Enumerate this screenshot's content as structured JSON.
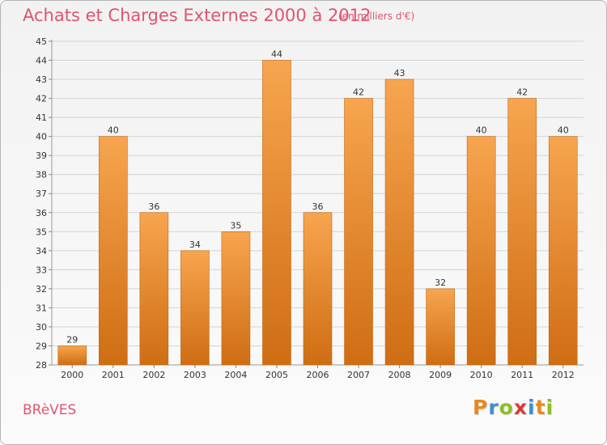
{
  "header": {
    "title": "Achats et Charges Externes 2000 à 2012",
    "subtitle": "(en milliers d'€)"
  },
  "footer": {
    "commune": "BRèVES",
    "brand": {
      "letters": [
        "P",
        "r",
        "o",
        "x",
        "i",
        "t",
        "i"
      ],
      "colors": [
        "#e8891c",
        "#3d8fd1",
        "#8cbf26",
        "#d93a32",
        "#3d8fd1",
        "#e8891c",
        "#8cbf26"
      ]
    }
  },
  "chart_data": {
    "type": "bar",
    "title": "Achats et Charges Externes 2000 à 2012",
    "subtitle": "(en milliers d'€)",
    "xlabel": "",
    "ylabel": "",
    "categories": [
      "2000",
      "2001",
      "2002",
      "2003",
      "2004",
      "2005",
      "2006",
      "2007",
      "2008",
      "2009",
      "2010",
      "2011",
      "2012"
    ],
    "values": [
      29,
      40,
      36,
      34,
      35,
      44,
      36,
      42,
      43,
      32,
      40,
      42,
      40
    ],
    "ylim": [
      28,
      45
    ],
    "yticks": [
      28,
      29,
      30,
      31,
      32,
      33,
      34,
      35,
      36,
      37,
      38,
      39,
      40,
      41,
      42,
      43,
      44,
      45
    ],
    "grid": true,
    "bar_color_light": "#f7a54f",
    "bar_color_dark": "#cf6d13",
    "value_labels": true
  }
}
